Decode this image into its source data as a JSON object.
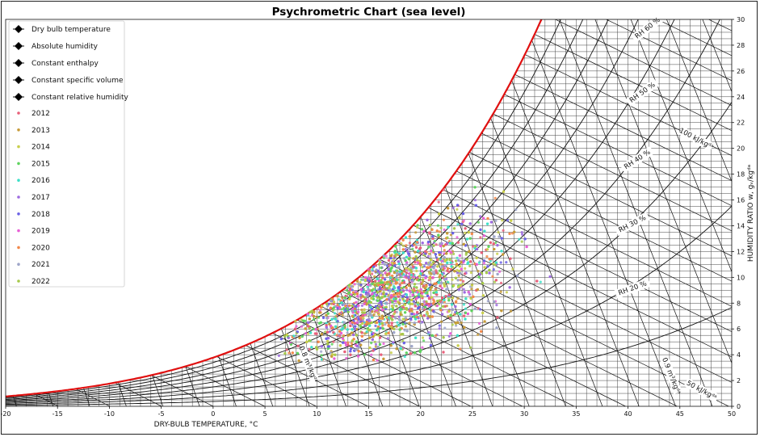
{
  "chart_data": {
    "type": "scatter",
    "title": "Psychrometric Chart (sea level)",
    "xlabel": "DRY-BULB TEMPERATURE, °C",
    "ylabel": "HUMIDITY RATIO w, gᵥ/kgᵈᵃ",
    "xlim": [
      -20,
      50
    ],
    "ylim": [
      0,
      30
    ],
    "x_ticks": [
      -20,
      -15,
      -10,
      -5,
      0,
      5,
      10,
      15,
      20,
      25,
      30,
      35,
      40,
      45,
      50
    ],
    "y_ticks": [
      0,
      2,
      4,
      6,
      8,
      10,
      12,
      14,
      16,
      18,
      20,
      22,
      24,
      26,
      28,
      30
    ],
    "grid": true,
    "legend_placement": "upper-left",
    "legend_lines": [
      {
        "label": "Dry bulb temperature"
      },
      {
        "label": "Absolute humidity"
      },
      {
        "label": "Constant enthalpy"
      },
      {
        "label": "Constant specific volume"
      },
      {
        "label": "Constant relative humidity"
      }
    ],
    "series": [
      {
        "name": "2012",
        "color": "#e8607a"
      },
      {
        "name": "2013",
        "color": "#c79b3a"
      },
      {
        "name": "2014",
        "color": "#c9cf4c"
      },
      {
        "name": "2015",
        "color": "#5fd35f"
      },
      {
        "name": "2016",
        "color": "#3fe0c8"
      },
      {
        "name": "2017",
        "color": "#9d6be0"
      },
      {
        "name": "2018",
        "color": "#6c63e6"
      },
      {
        "name": "2019",
        "color": "#e85fd6"
      },
      {
        "name": "2020",
        "color": "#f2884a"
      },
      {
        "name": "2021",
        "color": "#9fa6c9"
      },
      {
        "name": "2022",
        "color": "#a6c94a"
      }
    ],
    "data_region": {
      "x_range": [
        6,
        33
      ],
      "w_range": [
        3.5,
        17.5
      ],
      "rh_range": [
        20,
        100
      ],
      "note_dense_center": [
        17,
        9
      ]
    },
    "annotations": {
      "rh": [
        {
          "label": "RH 60 %",
          "rh": 60
        },
        {
          "label": "RH 50 %",
          "rh": 50
        },
        {
          "label": "RH 40 %",
          "rh": 40
        },
        {
          "label": "RH 30 %",
          "rh": 30
        },
        {
          "label": "RH 20 %",
          "rh": 20
        }
      ],
      "enthalpy": [
        {
          "label": "100 kJ/kgᵈᵃ",
          "h": 100
        },
        {
          "label": "50 kJ/kgᵈᵃ",
          "h": 50
        }
      ],
      "volume": [
        {
          "label": "0.9 m³/kgᵈᵃ",
          "v": 0.9,
          "pos": "lower-right"
        },
        {
          "label": "0.8 m³/kgᵈᵃ",
          "v": 0.8,
          "pos": "lower-left"
        }
      ]
    }
  }
}
